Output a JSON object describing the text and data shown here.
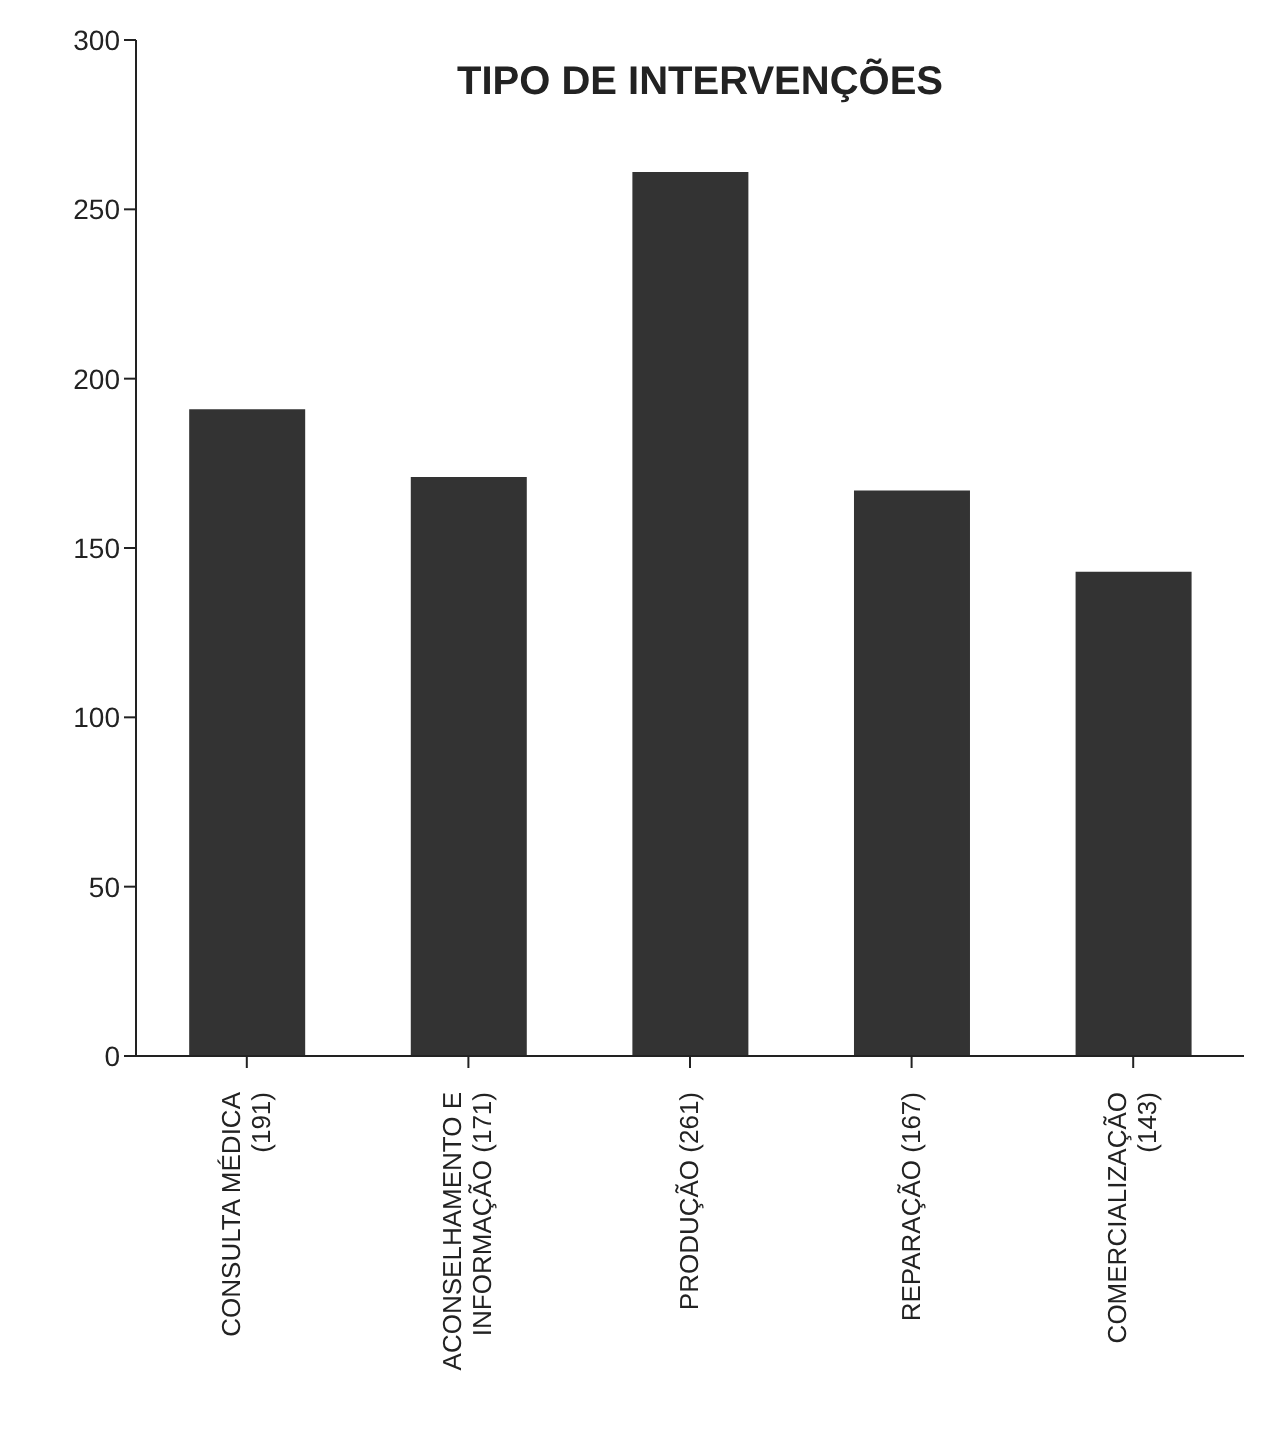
{
  "chart_data": {
    "type": "bar",
    "title": "TIPO DE INTERVENÇÕES",
    "categories": [
      "CONSULTA MÉDICA (191)",
      "ACONSELHAMENTO E INFORMAÇÃO (171)",
      "PRODUÇÃO (261)",
      "REPARAÇÃO (167)",
      "COMERCIALIZAÇÃO (143)"
    ],
    "values": [
      191,
      171,
      261,
      167,
      143
    ],
    "color": "#333333",
    "ylim": [
      0,
      300
    ],
    "yticks": [
      0,
      50,
      100,
      150,
      200,
      250,
      300
    ],
    "grid": false
  }
}
